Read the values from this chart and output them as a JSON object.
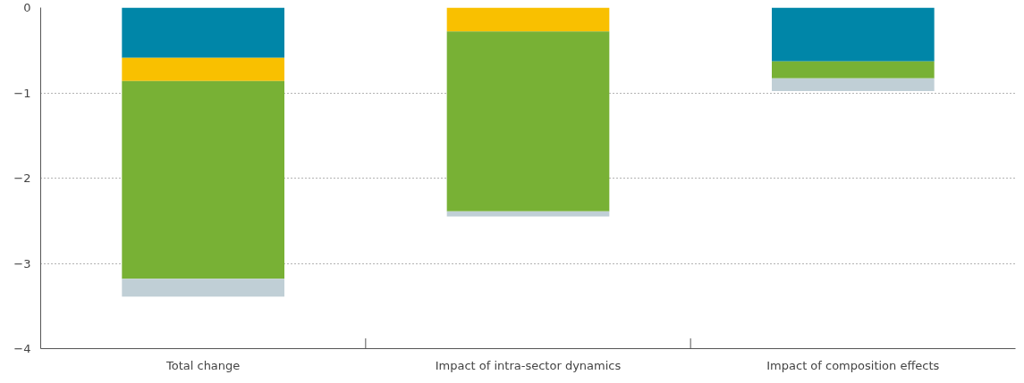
{
  "chart_data": {
    "type": "bar",
    "stacked": true,
    "categories": [
      "Total change",
      "Impact of intra-sector dynamics",
      "Impact of composition effects"
    ],
    "series": [
      {
        "color": "#0086a8",
        "values": [
          -0.59,
          0,
          -0.63
        ]
      },
      {
        "color": "#f9c000",
        "values": [
          -0.27,
          -0.28,
          0
        ]
      },
      {
        "color": "#78b135",
        "values": [
          -2.32,
          -2.11,
          -0.2
        ]
      },
      {
        "color": "#c0cfd6",
        "values": [
          -0.21,
          -0.06,
          -0.15
        ]
      }
    ],
    "ylim": [
      -4,
      0
    ],
    "yticks": [
      {
        "value": -4,
        "label": "−4"
      },
      {
        "value": -3,
        "label": "−3"
      },
      {
        "value": -2,
        "label": "−2"
      },
      {
        "value": -1,
        "label": "−1"
      },
      0
    ],
    "grid": "y"
  }
}
